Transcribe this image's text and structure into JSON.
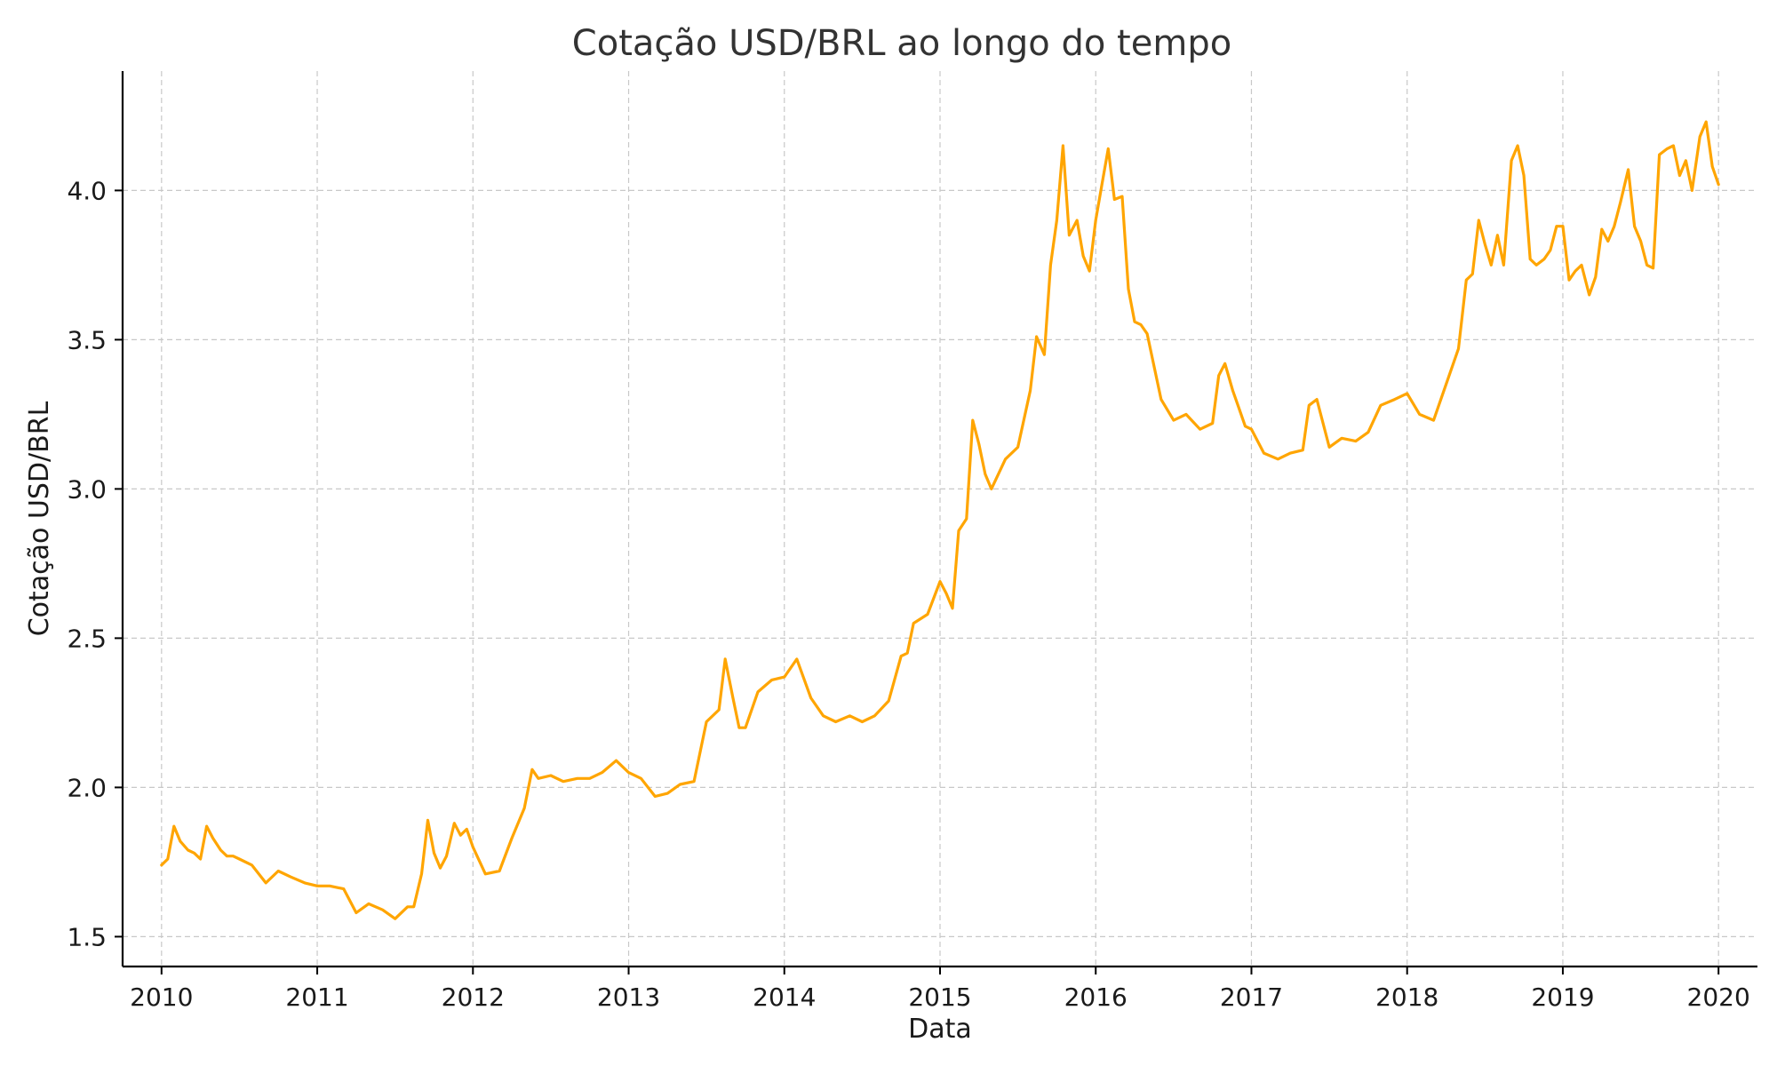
{
  "chart_data": {
    "type": "line",
    "title": "Cotação USD/BRL ao longo do tempo",
    "xlabel": "Data",
    "ylabel": "Cotação USD/BRL",
    "xlim": [
      2009.75,
      2020.25
    ],
    "ylim": [
      1.4,
      4.4
    ],
    "x_ticks": [
      2010,
      2011,
      2012,
      2013,
      2014,
      2015,
      2016,
      2017,
      2018,
      2019,
      2020
    ],
    "x_tick_labels": [
      "2010",
      "2011",
      "2012",
      "2013",
      "2014",
      "2015",
      "2016",
      "2017",
      "2018",
      "2019",
      "2020"
    ],
    "y_ticks": [
      1.5,
      2.0,
      2.5,
      3.0,
      3.5,
      4.0
    ],
    "y_tick_labels": [
      "1.5",
      "2.0",
      "2.5",
      "3.0",
      "3.5",
      "4.0"
    ],
    "grid": true,
    "color": "#FFA500",
    "series": [
      {
        "x": [
          2010.0,
          2010.04,
          2010.08,
          2010.12,
          2010.17,
          2010.21,
          2010.25,
          2010.29,
          2010.33,
          2010.38,
          2010.42,
          2010.46,
          2010.5,
          2010.58,
          2010.67,
          2010.75,
          2010.83,
          2010.92,
          2011.0,
          2011.08,
          2011.17,
          2011.25,
          2011.33,
          2011.42,
          2011.5,
          2011.58,
          2011.62,
          2011.67,
          2011.71,
          2011.75,
          2011.79,
          2011.83,
          2011.88,
          2011.92,
          2011.96,
          2012.0,
          2012.08,
          2012.17,
          2012.25,
          2012.33,
          2012.38,
          2012.42,
          2012.5,
          2012.58,
          2012.67,
          2012.75,
          2012.83,
          2012.92,
          2013.0,
          2013.08,
          2013.17,
          2013.25,
          2013.33,
          2013.42,
          2013.5,
          2013.58,
          2013.62,
          2013.67,
          2013.71,
          2013.75,
          2013.83,
          2013.92,
          2014.0,
          2014.08,
          2014.17,
          2014.25,
          2014.33,
          2014.42,
          2014.5,
          2014.58,
          2014.67,
          2014.75,
          2014.79,
          2014.83,
          2014.92,
          2015.0,
          2015.04,
          2015.08,
          2015.12,
          2015.17,
          2015.21,
          2015.25,
          2015.29,
          2015.33,
          2015.42,
          2015.5,
          2015.58,
          2015.62,
          2015.67,
          2015.71,
          2015.75,
          2015.79,
          2015.83,
          2015.88,
          2015.92,
          2015.96,
          2016.0,
          2016.04,
          2016.08,
          2016.12,
          2016.17,
          2016.21,
          2016.25,
          2016.29,
          2016.33,
          2016.42,
          2016.5,
          2016.58,
          2016.67,
          2016.75,
          2016.79,
          2016.83,
          2016.88,
          2016.92,
          2016.96,
          2017.0,
          2017.08,
          2017.17,
          2017.25,
          2017.33,
          2017.37,
          2017.42,
          2017.5,
          2017.58,
          2017.67,
          2017.75,
          2017.83,
          2017.92,
          2018.0,
          2018.08,
          2018.17,
          2018.25,
          2018.33,
          2018.38,
          2018.42,
          2018.46,
          2018.5,
          2018.54,
          2018.58,
          2018.62,
          2018.67,
          2018.71,
          2018.75,
          2018.79,
          2018.83,
          2018.88,
          2018.92,
          2018.96,
          2019.0,
          2019.04,
          2019.08,
          2019.12,
          2019.17,
          2019.21,
          2019.25,
          2019.29,
          2019.33,
          2019.37,
          2019.42,
          2019.46,
          2019.5,
          2019.54,
          2019.58,
          2019.62,
          2019.67,
          2019.71,
          2019.75,
          2019.79,
          2019.83,
          2019.88,
          2019.92,
          2019.96,
          2020.0
        ],
        "y": [
          1.74,
          1.76,
          1.87,
          1.82,
          1.79,
          1.78,
          1.76,
          1.87,
          1.83,
          1.79,
          1.77,
          1.77,
          1.76,
          1.74,
          1.68,
          1.72,
          1.7,
          1.68,
          1.67,
          1.67,
          1.66,
          1.58,
          1.61,
          1.59,
          1.56,
          1.6,
          1.6,
          1.71,
          1.89,
          1.78,
          1.73,
          1.77,
          1.88,
          1.84,
          1.86,
          1.8,
          1.71,
          1.72,
          1.83,
          1.93,
          2.06,
          2.03,
          2.04,
          2.02,
          2.03,
          2.03,
          2.05,
          2.09,
          2.05,
          2.03,
          1.97,
          1.98,
          2.01,
          2.02,
          2.22,
          2.26,
          2.43,
          2.3,
          2.2,
          2.2,
          2.32,
          2.36,
          2.37,
          2.43,
          2.3,
          2.24,
          2.22,
          2.24,
          2.22,
          2.24,
          2.29,
          2.44,
          2.45,
          2.55,
          2.58,
          2.69,
          2.65,
          2.6,
          2.86,
          2.9,
          3.23,
          3.15,
          3.05,
          3.0,
          3.1,
          3.14,
          3.33,
          3.51,
          3.45,
          3.75,
          3.9,
          4.15,
          3.85,
          3.9,
          3.78,
          3.73,
          3.9,
          4.02,
          4.14,
          3.97,
          3.98,
          3.67,
          3.56,
          3.55,
          3.52,
          3.3,
          3.23,
          3.25,
          3.2,
          3.22,
          3.38,
          3.42,
          3.33,
          3.27,
          3.21,
          3.2,
          3.12,
          3.1,
          3.12,
          3.13,
          3.28,
          3.3,
          3.14,
          3.17,
          3.16,
          3.19,
          3.28,
          3.3,
          3.32,
          3.25,
          3.23,
          3.35,
          3.47,
          3.7,
          3.72,
          3.9,
          3.82,
          3.75,
          3.85,
          3.75,
          4.1,
          4.15,
          4.05,
          3.77,
          3.75,
          3.77,
          3.8,
          3.88,
          3.88,
          3.7,
          3.73,
          3.75,
          3.65,
          3.71,
          3.87,
          3.83,
          3.88,
          3.96,
          4.07,
          3.88,
          3.83,
          3.75,
          3.74,
          4.12,
          4.14,
          4.15,
          4.05,
          4.1,
          4.0,
          4.18,
          4.23,
          4.08,
          4.02
        ]
      }
    ]
  }
}
